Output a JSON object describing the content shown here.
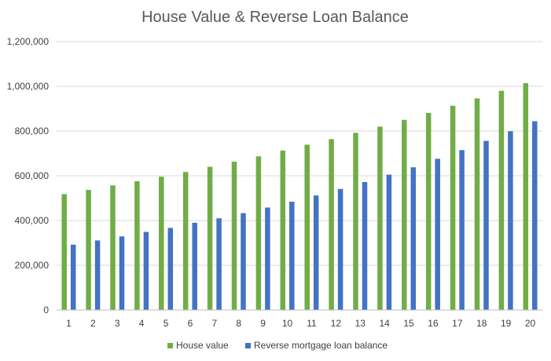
{
  "chart_data": {
    "type": "bar",
    "title": "House Value & Reverse Loan Balance",
    "xlabel": "",
    "ylabel": "",
    "categories": [
      "1",
      "2",
      "3",
      "4",
      "5",
      "6",
      "7",
      "8",
      "9",
      "10",
      "11",
      "12",
      "13",
      "14",
      "15",
      "16",
      "17",
      "18",
      "19",
      "20"
    ],
    "series": [
      {
        "name": "House value",
        "color": "#70ad47",
        "values": [
          518000,
          537000,
          557000,
          576000,
          596000,
          617000,
          640000,
          663000,
          687000,
          713000,
          739000,
          764000,
          792000,
          820000,
          850000,
          881000,
          913000,
          946000,
          980000,
          1014000
        ]
      },
      {
        "name": "Reverse mortgage loan balance",
        "color": "#4472c4",
        "values": [
          292000,
          311000,
          329000,
          349000,
          367000,
          390000,
          410000,
          433000,
          458000,
          484000,
          512000,
          541000,
          572000,
          605000,
          638000,
          676000,
          715000,
          756000,
          799000,
          844000
        ]
      }
    ],
    "ylim": [
      0,
      1200000
    ],
    "yticks": [
      "0",
      "200,000",
      "400,000",
      "600,000",
      "800,000",
      "1,000,000",
      "1,200,000"
    ],
    "ytick_values": [
      0,
      200000,
      400000,
      600000,
      800000,
      1000000,
      1200000
    ],
    "grid": true,
    "legend_position": "bottom"
  }
}
